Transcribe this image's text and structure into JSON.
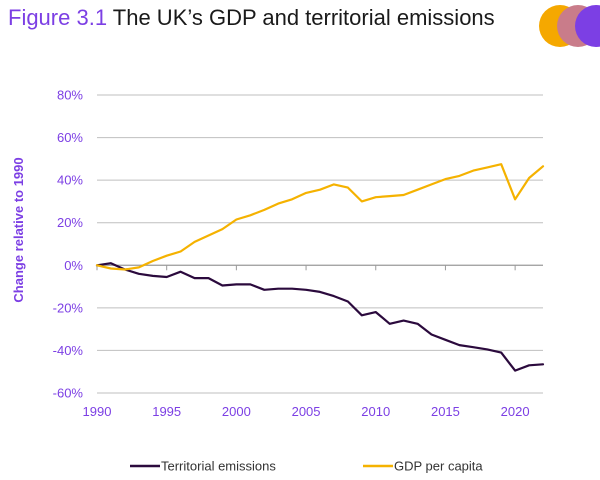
{
  "header": {
    "figure_number": "Figure 3.1",
    "title": "The UK’s GDP and territorial emissions"
  },
  "colors": {
    "accent": "#7c3fe4",
    "emissions": "#2b0a3d",
    "gdp": "#f5b200",
    "grid": "#bfbfbf",
    "axis": "#9a9a9a",
    "logo": [
      "#f5a800",
      "#c97c8a",
      "#7c3fe4"
    ]
  },
  "chart_data": {
    "type": "line",
    "ylabel": "Change relative to 1990",
    "xlabel": "",
    "xlim": [
      1990,
      2022
    ],
    "ylim": [
      -60,
      80
    ],
    "x_ticks": [
      1990,
      1995,
      2000,
      2005,
      2010,
      2015,
      2020
    ],
    "y_ticks": [
      -60,
      -40,
      -20,
      0,
      20,
      40,
      60,
      80
    ],
    "y_tick_labels": [
      "-60%",
      "-40%",
      "-20%",
      "0%",
      "20%",
      "40%",
      "60%",
      "80%"
    ],
    "grid": true,
    "legend_position": "bottom",
    "x": [
      1990,
      1991,
      1992,
      1993,
      1994,
      1995,
      1996,
      1997,
      1998,
      1999,
      2000,
      2001,
      2002,
      2003,
      2004,
      2005,
      2006,
      2007,
      2008,
      2009,
      2010,
      2011,
      2012,
      2013,
      2014,
      2015,
      2016,
      2017,
      2018,
      2019,
      2020,
      2021,
      2022
    ],
    "series": [
      {
        "name": "Territorial emissions",
        "color": "#2b0a3d",
        "values": [
          0,
          1,
          -2,
          -4,
          -5,
          -5.5,
          -3,
          -6,
          -6,
          -9.5,
          -9,
          -9,
          -11.5,
          -11,
          -11,
          -11.5,
          -12.5,
          -14.5,
          -17,
          -23.5,
          -22,
          -27.5,
          -26,
          -27.5,
          -32.5,
          -35,
          -37.5,
          -38.5,
          -39.5,
          -41,
          -49.5,
          -47,
          -46.5
        ]
      },
      {
        "name": "GDP per capita",
        "color": "#f5b200",
        "values": [
          0,
          -1.5,
          -2,
          -1,
          2,
          4.5,
          6.5,
          11,
          14,
          17,
          21.5,
          23.5,
          26,
          29,
          31,
          34,
          35.5,
          38,
          36.5,
          30,
          32,
          32.5,
          33,
          35.5,
          38,
          40.5,
          42,
          44.5,
          46,
          47.5,
          31,
          41,
          46.5
        ]
      }
    ]
  }
}
